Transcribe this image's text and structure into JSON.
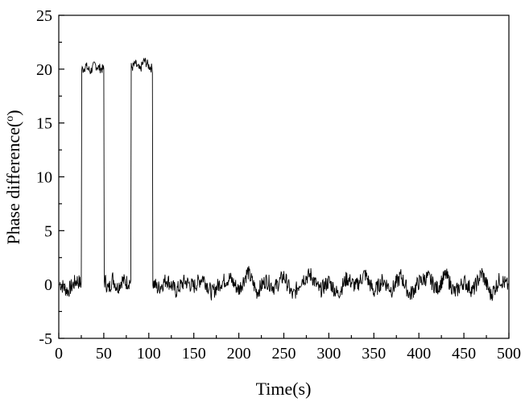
{
  "chart_data": {
    "type": "line",
    "title": "",
    "xlabel": "Time(s)",
    "ylabel_main": "Phase difference(",
    "ylabel_sup": "o",
    "ylabel_close": ")",
    "xlim": [
      0,
      500
    ],
    "ylim": [
      -5,
      25
    ],
    "x_ticks": [
      0,
      50,
      100,
      150,
      200,
      250,
      300,
      350,
      400,
      450,
      500
    ],
    "y_ticks": [
      -5,
      0,
      5,
      10,
      15,
      20,
      25
    ],
    "grid": false,
    "legend": "none",
    "line_color": "#000000",
    "series": [
      {
        "x": [
          0,
          10,
          20,
          24,
          27,
          30,
          35,
          40,
          45,
          49,
          52,
          55,
          60,
          65,
          70,
          75,
          79,
          82,
          85,
          90,
          95,
          100,
          103,
          106,
          110,
          120,
          130,
          140,
          150,
          160,
          170,
          180,
          190,
          200,
          210,
          220,
          230,
          240,
          250,
          260,
          270,
          280,
          290,
          300,
          310,
          320,
          330,
          340,
          350,
          360,
          370,
          380,
          390,
          400,
          410,
          420,
          430,
          440,
          450,
          460,
          470,
          480,
          490,
          500
        ],
        "y": [
          0.2,
          -0.6,
          0.4,
          0.1,
          20.0,
          20.3,
          19.8,
          20.4,
          20.1,
          20.0,
          0.3,
          -0.5,
          0.6,
          -0.3,
          0.4,
          0.2,
          0.3,
          20.2,
          20.5,
          19.9,
          20.8,
          20.3,
          20.1,
          0.1,
          -0.4,
          0.5,
          -0.6,
          0.3,
          -0.2,
          0.7,
          -0.8,
          0.2,
          0.6,
          -0.5,
          1.2,
          -0.7,
          0.4,
          -0.3,
          0.8,
          -1.1,
          0.5,
          0.9,
          -0.6,
          0.3,
          -0.9,
          0.6,
          -0.2,
          1.0,
          -0.7,
          0.4,
          -0.5,
          0.8,
          -1.0,
          0.2,
          0.7,
          -0.4,
          0.9,
          -0.8,
          0.3,
          -0.6,
          1.1,
          -1.0,
          0.5,
          -0.2
        ]
      }
    ]
  }
}
